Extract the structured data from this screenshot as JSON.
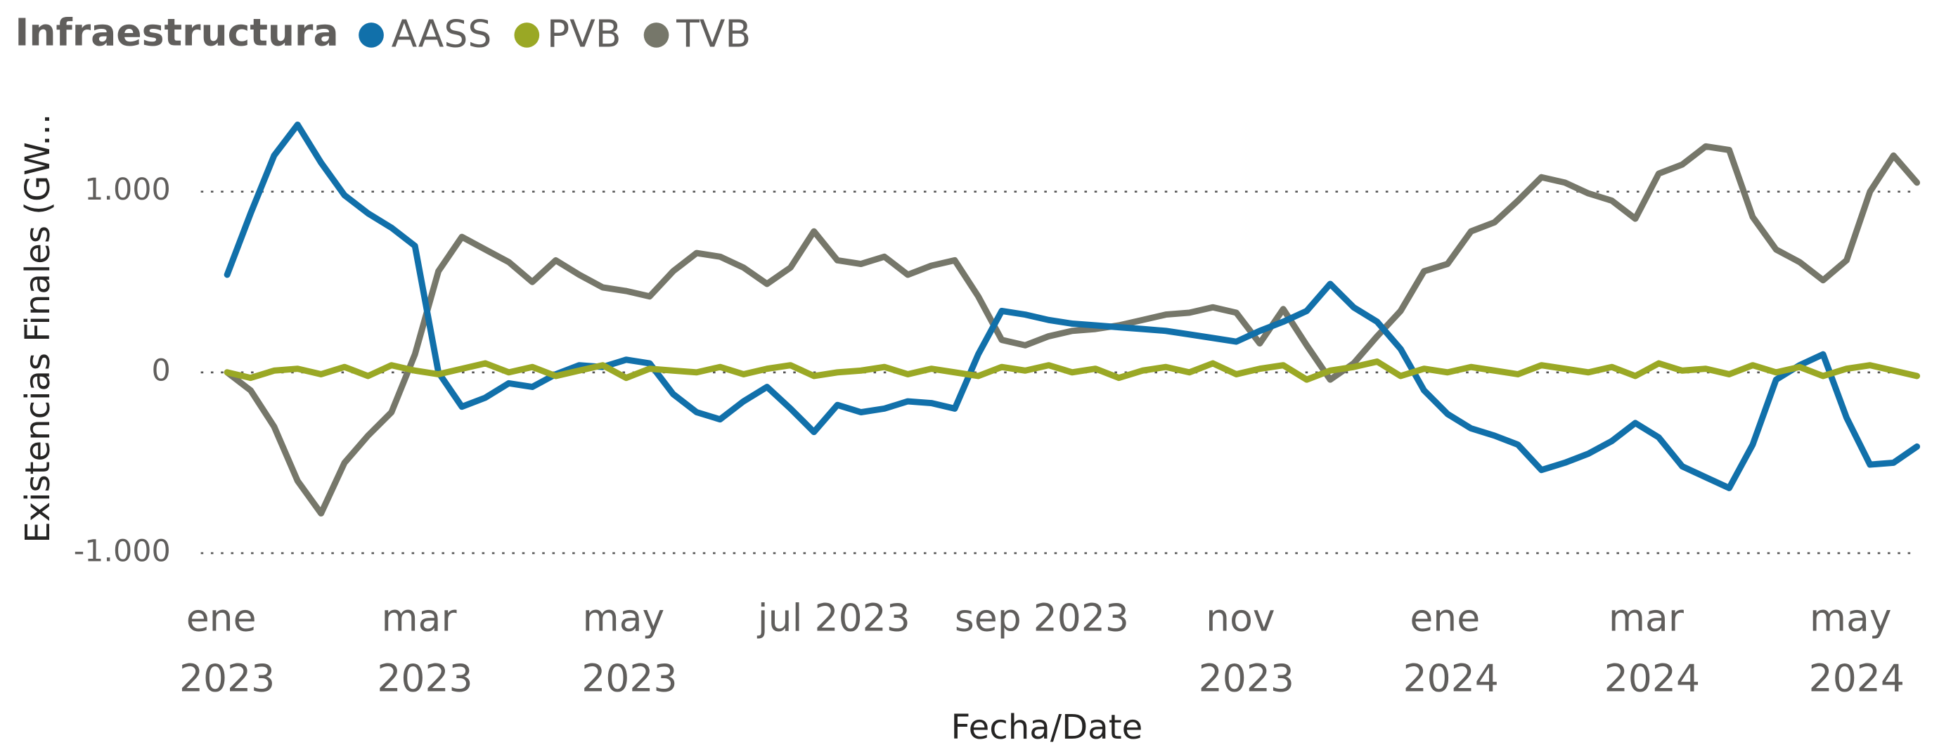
{
  "chart_data": {
    "type": "line",
    "legend_title": "Infraestructura",
    "x_label": "Fecha/Date",
    "y_label": "Existencias Finales (GW...",
    "x": [
      "2023-01-01",
      "2023-01-08",
      "2023-01-15",
      "2023-01-22",
      "2023-01-29",
      "2023-02-05",
      "2023-02-12",
      "2023-02-19",
      "2023-02-26",
      "2023-03-05",
      "2023-03-12",
      "2023-03-19",
      "2023-03-26",
      "2023-04-02",
      "2023-04-09",
      "2023-04-16",
      "2023-04-23",
      "2023-04-30",
      "2023-05-07",
      "2023-05-14",
      "2023-05-21",
      "2023-05-28",
      "2023-06-04",
      "2023-06-11",
      "2023-06-18",
      "2023-06-25",
      "2023-07-02",
      "2023-07-09",
      "2023-07-16",
      "2023-07-23",
      "2023-07-30",
      "2023-08-06",
      "2023-08-13",
      "2023-08-20",
      "2023-08-27",
      "2023-09-03",
      "2023-09-10",
      "2023-09-17",
      "2023-09-24",
      "2023-10-01",
      "2023-10-08",
      "2023-10-15",
      "2023-10-22",
      "2023-10-29",
      "2023-11-05",
      "2023-11-12",
      "2023-11-19",
      "2023-11-26",
      "2023-12-03",
      "2023-12-10",
      "2023-12-17",
      "2023-12-24",
      "2023-12-31",
      "2024-01-07",
      "2024-01-14",
      "2024-01-21",
      "2024-01-28",
      "2024-02-04",
      "2024-02-11",
      "2024-02-18",
      "2024-02-25",
      "2024-03-03",
      "2024-03-10",
      "2024-03-17",
      "2024-03-24",
      "2024-03-31",
      "2024-04-07",
      "2024-04-14",
      "2024-04-21",
      "2024-04-28",
      "2024-05-05",
      "2024-05-12",
      "2024-05-19"
    ],
    "series": [
      {
        "name": "AASS",
        "color": "#1170aa",
        "values": [
          540,
          880,
          1200,
          1370,
          1160,
          980,
          880,
          800,
          700,
          0,
          -190,
          -140,
          -60,
          -80,
          -10,
          40,
          30,
          70,
          50,
          -120,
          -220,
          -260,
          -160,
          -80,
          -200,
          -330,
          -180,
          -220,
          -200,
          -160,
          -170,
          -200,
          100,
          340,
          320,
          290,
          270,
          260,
          250,
          240,
          230,
          210,
          190,
          170,
          230,
          280,
          340,
          490,
          360,
          280,
          130,
          -100,
          -230,
          -310,
          -350,
          -400,
          -540,
          -500,
          -450,
          -380,
          -280,
          -360,
          -520,
          -580,
          -640,
          -400,
          -40,
          40,
          100,
          -250,
          -510,
          -500,
          -410
        ]
      },
      {
        "name": "PVB",
        "color": "#9aa825",
        "values": [
          0,
          -30,
          10,
          20,
          -10,
          30,
          -20,
          40,
          10,
          -10,
          20,
          50,
          0,
          30,
          -20,
          10,
          40,
          -30,
          20,
          10,
          0,
          30,
          -10,
          20,
          40,
          -20,
          0,
          10,
          30,
          -10,
          20,
          0,
          -20,
          30,
          10,
          40,
          0,
          20,
          -30,
          10,
          30,
          0,
          50,
          -10,
          20,
          40,
          -40,
          10,
          30,
          60,
          -20,
          20,
          0,
          30,
          10,
          -10,
          40,
          20,
          0,
          30,
          -20,
          50,
          10,
          20,
          -10,
          40,
          0,
          30,
          -20,
          20,
          40,
          10,
          -20
        ]
      },
      {
        "name": "TVB",
        "color": "#76776a",
        "values": [
          0,
          -100,
          -300,
          -600,
          -780,
          -500,
          -350,
          -220,
          100,
          560,
          750,
          680,
          610,
          500,
          620,
          540,
          470,
          450,
          420,
          560,
          660,
          640,
          580,
          490,
          580,
          780,
          620,
          600,
          640,
          540,
          590,
          620,
          420,
          180,
          150,
          200,
          230,
          240,
          260,
          290,
          320,
          330,
          360,
          330,
          160,
          350,
          150,
          -40,
          50,
          200,
          340,
          560,
          600,
          780,
          830,
          950,
          1080,
          1050,
          990,
          950,
          850,
          1100,
          1150,
          1250,
          1230,
          860,
          680,
          610,
          510,
          620,
          1000,
          1200,
          1050
        ]
      }
    ],
    "xticks": [
      {
        "value": "2023-01-01",
        "label": "ene 2023"
      },
      {
        "value": "2023-03-01",
        "label": "mar 2023"
      },
      {
        "value": "2023-05-01",
        "label": "may 2023"
      },
      {
        "value": "2023-07-01",
        "label": "jul 2023"
      },
      {
        "value": "2023-09-01",
        "label": "sep 2023"
      },
      {
        "value": "2023-11-01",
        "label": "nov 2023"
      },
      {
        "value": "2024-01-01",
        "label": "ene 2024"
      },
      {
        "value": "2024-03-01",
        "label": "mar 2024"
      },
      {
        "value": "2024-05-01",
        "label": "may 2024"
      }
    ],
    "ylim": [
      -1060,
      1450
    ],
    "yticks": [
      {
        "value": -1000,
        "label": "-1.000"
      },
      0,
      {
        "value": 1000,
        "label": "1.000"
      }
    ],
    "grid": true
  }
}
